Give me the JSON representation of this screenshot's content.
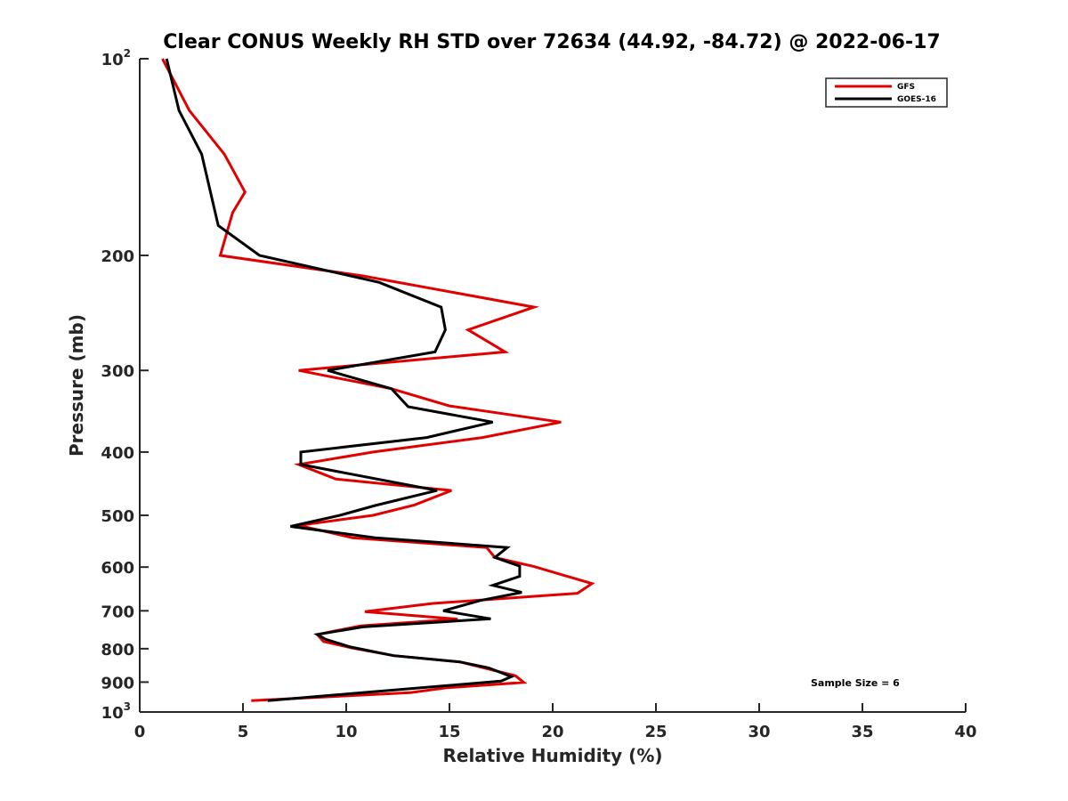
{
  "chart_data": {
    "type": "line",
    "title": "Clear CONUS Weekly RH STD over 72634 (44.92, -84.72) @ 2022-06-17",
    "xlabel": "Relative Humidity (%)",
    "ylabel": "Pressure (mb)",
    "xlim": [
      0,
      40
    ],
    "ylim": [
      100,
      1000
    ],
    "yscale": "log",
    "yreversed": true,
    "grid": false,
    "legend_position": "top-right",
    "x_ticks": [
      {
        "value": 0,
        "label": "0"
      },
      {
        "value": 5,
        "label": "5"
      },
      {
        "value": 10,
        "label": "10"
      },
      {
        "value": 15,
        "label": "15"
      },
      {
        "value": 20,
        "label": "20"
      },
      {
        "value": 25,
        "label": "25"
      },
      {
        "value": 30,
        "label": "30"
      },
      {
        "value": 35,
        "label": "35"
      },
      {
        "value": 40,
        "label": "40"
      }
    ],
    "y_ticks": [
      {
        "value": 100,
        "label": "10",
        "sup": "2"
      },
      {
        "value": 200,
        "label": "200",
        "sup": ""
      },
      {
        "value": 300,
        "label": "300",
        "sup": ""
      },
      {
        "value": 400,
        "label": "400",
        "sup": ""
      },
      {
        "value": 500,
        "label": "500",
        "sup": ""
      },
      {
        "value": 600,
        "label": "600",
        "sup": ""
      },
      {
        "value": 700,
        "label": "700",
        "sup": ""
      },
      {
        "value": 800,
        "label": "800",
        "sup": ""
      },
      {
        "value": 900,
        "label": "900",
        "sup": ""
      },
      {
        "value": 1000,
        "label": "10",
        "sup": "3"
      }
    ],
    "series": [
      {
        "name": "GFS",
        "color": "#e00000",
        "points": [
          [
            1.1,
            100
          ],
          [
            2.4,
            120
          ],
          [
            4.1,
            140
          ],
          [
            5.1,
            160
          ],
          [
            4.5,
            172
          ],
          [
            3.9,
            200
          ],
          [
            10.8,
            215
          ],
          [
            19.1,
            240
          ],
          [
            15.9,
            260
          ],
          [
            17.7,
            281
          ],
          [
            7.7,
            300
          ],
          [
            12.2,
            320
          ],
          [
            15.0,
            340
          ],
          [
            20.4,
            360
          ],
          [
            16.6,
            380
          ],
          [
            11.3,
            400
          ],
          [
            7.7,
            418
          ],
          [
            9.5,
            440
          ],
          [
            15.1,
            458
          ],
          [
            13.3,
            482
          ],
          [
            11.3,
            500
          ],
          [
            7.7,
            518
          ],
          [
            10.3,
            541
          ],
          [
            16.8,
            560
          ],
          [
            17.2,
            580
          ],
          [
            19.1,
            599
          ],
          [
            21.9,
            636
          ],
          [
            21.2,
            658
          ],
          [
            14.2,
            682
          ],
          [
            10.9,
            702
          ],
          [
            15.4,
            721
          ],
          [
            10.7,
            738
          ],
          [
            8.6,
            761
          ],
          [
            8.9,
            780
          ],
          [
            10.3,
            798
          ],
          [
            12.3,
            820
          ],
          [
            15.5,
            838
          ],
          [
            18.2,
            880
          ],
          [
            18.6,
            901
          ],
          [
            14.9,
            918
          ],
          [
            13.1,
            934
          ],
          [
            5.4,
            961
          ]
        ]
      },
      {
        "name": "GOES-16",
        "color": "#000000",
        "points": [
          [
            1.3,
            100
          ],
          [
            1.9,
            120
          ],
          [
            3.0,
            140
          ],
          [
            3.8,
            180
          ],
          [
            5.8,
            200
          ],
          [
            11.6,
            220
          ],
          [
            14.6,
            240
          ],
          [
            14.8,
            260
          ],
          [
            14.3,
            281
          ],
          [
            9.1,
            300
          ],
          [
            12.2,
            320
          ],
          [
            13.0,
            341
          ],
          [
            17.1,
            360
          ],
          [
            13.9,
            380
          ],
          [
            7.8,
            400
          ],
          [
            7.8,
            418
          ],
          [
            14.4,
            458
          ],
          [
            11.4,
            483
          ],
          [
            9.7,
            500
          ],
          [
            7.3,
            520
          ],
          [
            11.4,
            541
          ],
          [
            17.8,
            560
          ],
          [
            17.2,
            580
          ],
          [
            18.4,
            598
          ],
          [
            18.4,
            620
          ],
          [
            17.1,
            640
          ],
          [
            18.5,
            656
          ],
          [
            16.5,
            675
          ],
          [
            14.7,
            700
          ],
          [
            17.0,
            720
          ],
          [
            10.8,
            741
          ],
          [
            8.6,
            761
          ],
          [
            9.0,
            774
          ],
          [
            10.2,
            795
          ],
          [
            12.3,
            820
          ],
          [
            15.5,
            838
          ],
          [
            16.9,
            856
          ],
          [
            18.0,
            883
          ],
          [
            17.5,
            897
          ],
          [
            10.6,
            935
          ],
          [
            6.2,
            961
          ]
        ]
      }
    ],
    "annotations": [
      {
        "text": "Sample Size = 6",
        "x": 32.5,
        "y": 900
      }
    ]
  }
}
